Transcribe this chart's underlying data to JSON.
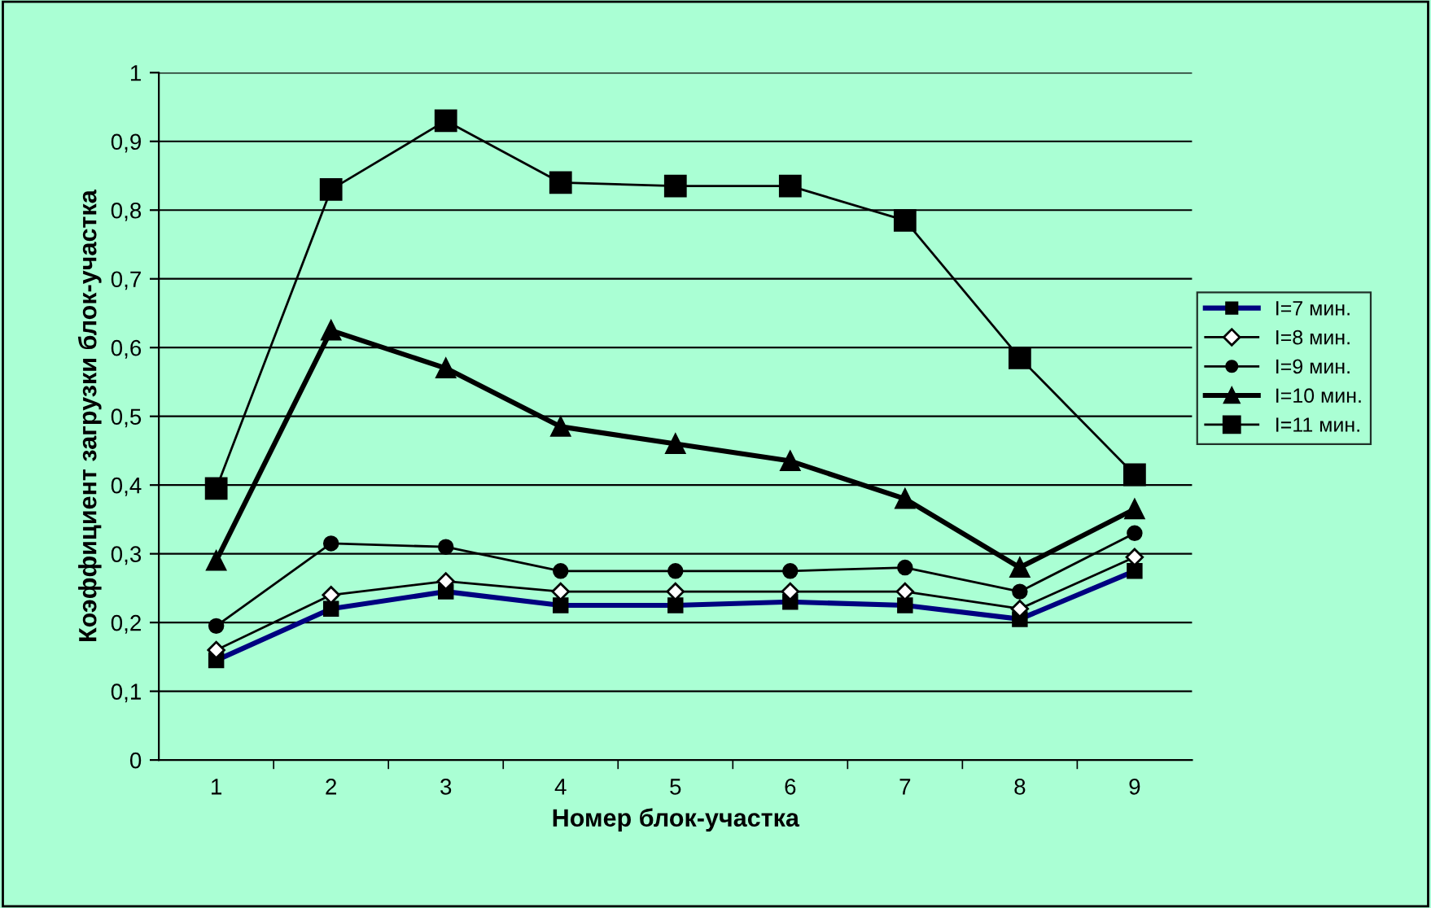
{
  "chart_data": {
    "type": "line",
    "xlabel": "Номер блок-участка",
    "ylabel": "Коэффициент загрузки блок-участка",
    "categories": [
      "1",
      "2",
      "3",
      "4",
      "5",
      "6",
      "7",
      "8",
      "9"
    ],
    "series": [
      {
        "name": "I=7 мин.",
        "color": "#000080",
        "marker": "square",
        "values": [
          0.145,
          0.22,
          0.245,
          0.225,
          0.225,
          0.23,
          0.225,
          0.205,
          0.275
        ]
      },
      {
        "name": "I=8 мин.",
        "color": "#000000",
        "marker": "diamond",
        "values": [
          0.16,
          0.24,
          0.26,
          0.245,
          0.245,
          0.245,
          0.245,
          0.22,
          0.295
        ]
      },
      {
        "name": "I=9 мин.",
        "color": "#000000",
        "marker": "circle",
        "values": [
          0.195,
          0.315,
          0.31,
          0.275,
          0.275,
          0.275,
          0.28,
          0.245,
          0.33
        ]
      },
      {
        "name": "I=10 мин.",
        "color": "#000000",
        "marker": "triangle",
        "values": [
          0.29,
          0.625,
          0.57,
          0.485,
          0.46,
          0.435,
          0.38,
          0.28,
          0.365
        ]
      },
      {
        "name": "I=11 мин.",
        "color": "#000000",
        "marker": "square",
        "values": [
          0.395,
          0.83,
          0.93,
          0.84,
          0.835,
          0.835,
          0.785,
          0.585,
          0.415
        ]
      }
    ],
    "ylim": [
      0,
      1
    ],
    "yticks": [
      0,
      {
        "value": 0.1,
        "label": "0,1"
      },
      {
        "value": 0.2,
        "label": "0,2"
      },
      {
        "value": 0.3,
        "label": "0,3"
      },
      {
        "value": 0.4,
        "label": "0,4"
      },
      {
        "value": 0.5,
        "label": "0,5"
      },
      {
        "value": 0.6,
        "label": "0,6"
      },
      {
        "value": 0.7,
        "label": "0,7"
      },
      {
        "value": 0.8,
        "label": "0,8"
      },
      {
        "value": 0.9,
        "label": "0,9"
      },
      1
    ],
    "grid": "y",
    "legend": "right",
    "line_style": "solid"
  }
}
